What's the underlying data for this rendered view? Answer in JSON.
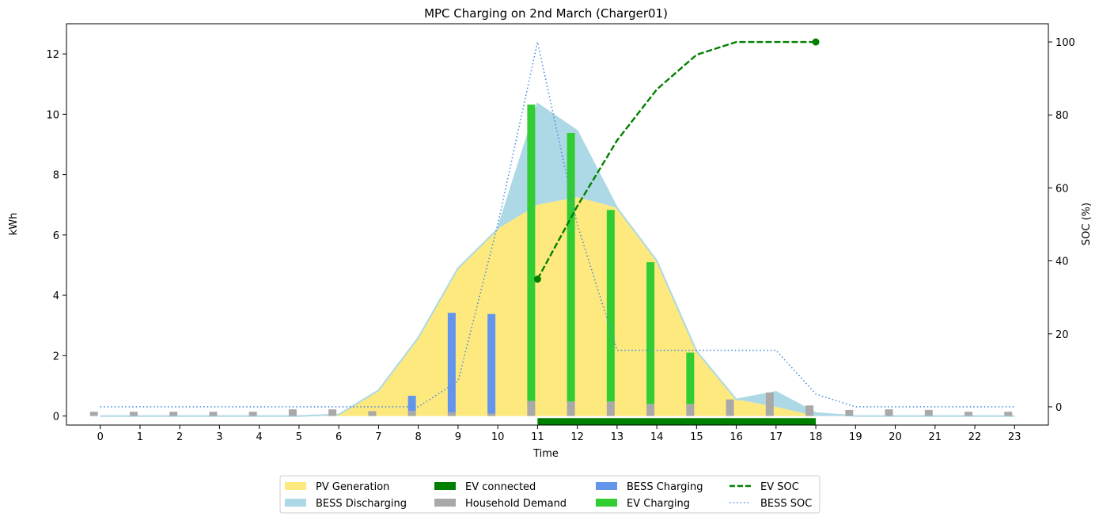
{
  "chart_data": {
    "type": "bar",
    "title": "MPC Charging on 2nd March (Charger01)",
    "xlabel": "Time",
    "ylabel": "kWh",
    "y2label": "SOC (%)",
    "x": [
      0,
      1,
      2,
      3,
      4,
      5,
      6,
      7,
      8,
      9,
      10,
      11,
      12,
      13,
      14,
      15,
      16,
      17,
      18,
      19,
      20,
      21,
      22,
      23
    ],
    "ylim": [
      -0.3,
      13
    ],
    "y2lim": [
      -5,
      105
    ],
    "yticks": [
      0,
      2,
      4,
      6,
      8,
      10,
      12
    ],
    "y2ticks": [
      0,
      20,
      40,
      60,
      80,
      100
    ],
    "colors": {
      "pv": "#fde97e",
      "bess_discharging": "#add8e6",
      "ev_connected": "#008000",
      "household": "#a9a9a9",
      "bess_charging": "#6495ed",
      "ev_charging": "#32cd32",
      "ev_soc": "#008000",
      "bess_soc": "#4a90e2"
    },
    "series": [
      {
        "name": "PV Generation",
        "type": "area",
        "values": [
          0,
          0,
          0,
          0,
          0,
          0,
          0.05,
          0.85,
          2.6,
          4.9,
          6.2,
          7.0,
          7.25,
          6.9,
          5.15,
          2.15,
          0.55,
          0.3,
          0,
          0,
          0,
          0,
          0,
          0
        ]
      },
      {
        "name": "BESS Discharging",
        "type": "area",
        "values": [
          0,
          0,
          0,
          0,
          0,
          0,
          0,
          0,
          0,
          0,
          0,
          3.35,
          2.2,
          0,
          0,
          0,
          0,
          0.5,
          0.1,
          0,
          0,
          0,
          0,
          0
        ]
      },
      {
        "name": "Household Demand",
        "type": "bar",
        "values": [
          0.14,
          0.14,
          0.14,
          0.14,
          0.14,
          0.22,
          0.22,
          0.16,
          0.17,
          0.12,
          0.08,
          0.5,
          0.48,
          0.48,
          0.4,
          0.4,
          0.55,
          0.78,
          0.35,
          0.2,
          0.22,
          0.2,
          0.14,
          0.14
        ]
      },
      {
        "name": "BESS Charging",
        "type": "bar",
        "values": [
          0,
          0,
          0,
          0,
          0,
          0,
          0,
          0,
          0.5,
          3.3,
          3.3,
          0,
          0,
          0,
          0,
          0,
          0,
          0,
          0,
          0,
          0,
          0,
          0,
          0
        ]
      },
      {
        "name": "EV Charging",
        "type": "bar",
        "values": [
          0,
          0,
          0,
          0,
          0,
          0,
          0,
          0,
          0,
          0,
          0,
          9.82,
          8.9,
          6.35,
          4.7,
          1.7,
          0,
          0,
          0,
          0,
          0,
          0,
          0,
          0
        ]
      },
      {
        "name": "EV SOC",
        "type": "line",
        "x": [
          11,
          12,
          13,
          14,
          15,
          16,
          17,
          18
        ],
        "values": [
          35,
          55,
          73,
          87,
          96.5,
          100,
          100,
          100
        ]
      },
      {
        "name": "BESS SOC",
        "type": "line",
        "values": [
          0,
          0,
          0,
          0,
          0,
          0,
          0,
          0,
          0,
          7,
          50,
          100,
          50,
          15.5,
          15.5,
          15.5,
          15.5,
          15.5,
          3.5,
          0,
          0,
          0,
          0,
          0
        ]
      }
    ],
    "ev_connected": {
      "start": 11,
      "end": 18
    },
    "legend": {
      "position": "bottom-center",
      "entries": [
        "PV Generation",
        "BESS Discharging",
        "EV connected",
        "Household Demand",
        "BESS Charging",
        "EV Charging",
        "EV SOC",
        "BESS SOC"
      ]
    }
  }
}
